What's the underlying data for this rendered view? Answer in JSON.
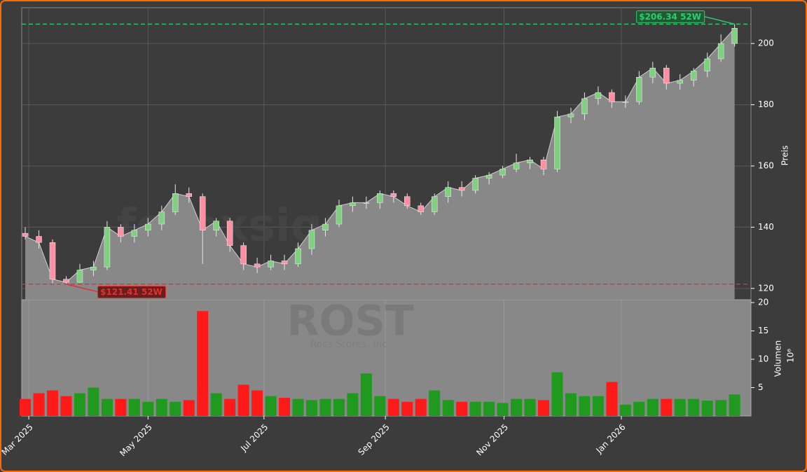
{
  "chart_data": {
    "type": "candlestick",
    "watermark": "forexsignale.trade",
    "symbol": "ROST",
    "company": "Ross Stores, Inc.",
    "xlim": [
      -0.26,
      53.2
    ],
    "xticks": [
      {
        "value": 0.26,
        "label": "Mar 2025"
      },
      {
        "value": 9.0,
        "label": "May 2025"
      },
      {
        "value": 17.5,
        "label": "Jul 2025"
      },
      {
        "value": 26.4,
        "label": "Sep 2025"
      },
      {
        "value": 35.1,
        "label": "Nov 2025"
      },
      {
        "value": 43.7,
        "label": "Jan 2026"
      }
    ],
    "open": [
      138,
      137,
      135,
      123,
      122,
      126,
      127,
      140,
      137,
      139,
      141,
      145,
      151,
      150,
      139,
      142,
      134,
      128,
      127,
      129,
      128,
      133,
      139,
      141,
      147,
      148,
      148,
      151,
      150,
      147,
      145,
      150,
      153,
      152,
      156,
      157,
      159,
      161,
      162,
      159,
      176,
      177,
      182,
      184,
      181,
      181,
      189,
      192,
      187,
      188,
      191,
      195,
      200
    ],
    "high": [
      140,
      139,
      136,
      124,
      128,
      129,
      142,
      141,
      141,
      143,
      147,
      154,
      153,
      151,
      143,
      143,
      135,
      130,
      131,
      131,
      135,
      141,
      143,
      149,
      150,
      150,
      152,
      152,
      151,
      148,
      151,
      155,
      155,
      157,
      158,
      160,
      164,
      163,
      163,
      178,
      179,
      184,
      186,
      185,
      183,
      191,
      194,
      193,
      190,
      192,
      197,
      203,
      206.34
    ],
    "low": [
      136,
      133,
      121.6,
      121.41,
      121.8,
      124,
      126,
      135,
      135,
      137,
      139,
      144,
      148,
      128,
      137,
      132,
      126,
      125,
      126,
      126,
      127,
      131,
      137,
      140,
      145,
      146,
      146,
      148,
      146,
      144,
      144,
      148,
      150,
      151,
      154,
      156,
      158,
      159,
      157,
      158,
      174,
      175,
      180,
      179,
      179,
      180,
      187,
      185,
      185,
      186,
      189,
      194,
      199
    ],
    "close": [
      137,
      135,
      123,
      122,
      126,
      127,
      140,
      137,
      139,
      141,
      145,
      151,
      150,
      139,
      142,
      134,
      128,
      127,
      129,
      128,
      133,
      139,
      141,
      147,
      148,
      148,
      151,
      150,
      147,
      145,
      150,
      153,
      152,
      156,
      157,
      159,
      161,
      162,
      159,
      176,
      177,
      182,
      184,
      181,
      181,
      189,
      192,
      187,
      188,
      191,
      195,
      200,
      205
    ],
    "volume": [
      3,
      4,
      4.5,
      3.5,
      4,
      5,
      3,
      3,
      3,
      2.5,
      3,
      2.5,
      2.8,
      18.5,
      4,
      3,
      5.5,
      4.5,
      3.5,
      3.2,
      3,
      2.8,
      3,
      3,
      4,
      7.5,
      3.5,
      3,
      2.5,
      3,
      4.5,
      2.8,
      2.5,
      2.5,
      2.5,
      2.3,
      3,
      3,
      2.8,
      7.7,
      4,
      3.5,
      3.5,
      6,
      2,
      2.5,
      3,
      3,
      3,
      3,
      2.7,
      2.8,
      3.8
    ],
    "ylim": [
      116.3,
      211.7
    ],
    "yticks": [
      120,
      140,
      160,
      180,
      200
    ],
    "ylabel": "Preis",
    "volume_ylim": [
      0,
      20.5
    ],
    "volume_yticks": [
      5,
      10,
      15,
      20
    ],
    "volume_label": "Volumen",
    "volume_exponent": "10⁶",
    "grid": true,
    "up_color": "#7fd17f",
    "down_color": "#ff8fa3",
    "volume_up_color": "#1f9a1f",
    "volume_down_color": "#ff1a1a",
    "area_color": "#888888",
    "annotations": [
      {
        "label": "$206.34 52W",
        "value": 206.34,
        "x": 52,
        "color": "#2ecc71",
        "box": "#1f5a33"
      },
      {
        "label": "$121.41 52W",
        "value": 121.41,
        "x": 3,
        "color": "#e03030",
        "box": "#6a1f1f"
      }
    ]
  }
}
